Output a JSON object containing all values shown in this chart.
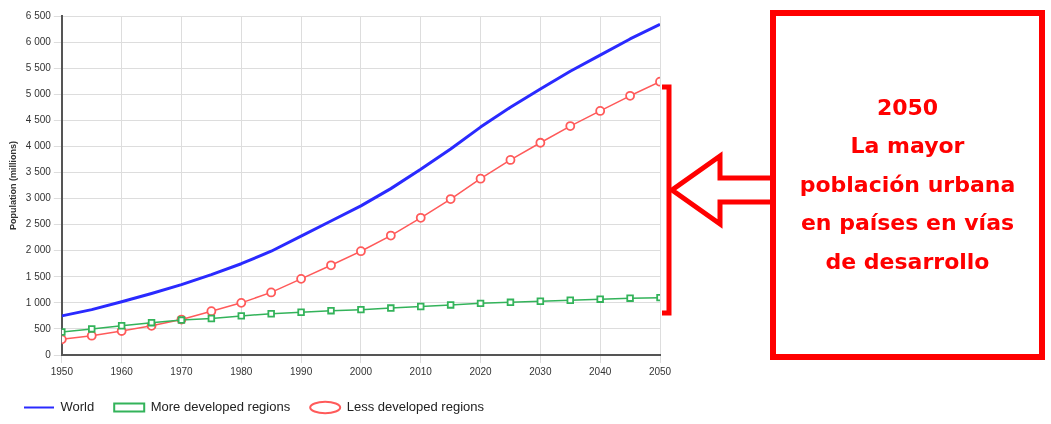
{
  "chart_data": {
    "type": "line",
    "ylabel": "Population (millions)",
    "x": [
      1950,
      1955,
      1960,
      1965,
      1970,
      1975,
      1980,
      1985,
      1990,
      1995,
      2000,
      2005,
      2010,
      2015,
      2020,
      2025,
      2030,
      2035,
      2040,
      2045,
      2050
    ],
    "xlim": [
      1950,
      2050
    ],
    "xticks": [
      1950,
      1960,
      1970,
      1980,
      1990,
      2000,
      2010,
      2020,
      2030,
      2040,
      2050
    ],
    "ylim": [
      0,
      6500
    ],
    "yticks": [
      0,
      {
        "value": 500,
        "label": "500"
      },
      {
        "value": 1000,
        "label": "1 000"
      },
      {
        "value": 1500,
        "label": "1 500"
      },
      {
        "value": 2000,
        "label": "2 000"
      },
      {
        "value": 2500,
        "label": "2 500"
      },
      {
        "value": 3000,
        "label": "3 000"
      },
      {
        "value": 3500,
        "label": "3 500"
      },
      {
        "value": 4000,
        "label": "4 000"
      },
      {
        "value": 4500,
        "label": "4 500"
      },
      {
        "value": 5000,
        "label": "5 000"
      },
      {
        "value": 5500,
        "label": "5 500"
      },
      {
        "value": 6000,
        "label": "6 000"
      },
      {
        "value": 6500,
        "label": "6 500"
      }
    ],
    "grid": true,
    "legend": "bottom",
    "series": [
      {
        "name": "World",
        "color": "#2a2aff",
        "marker": "none",
        "values": [
          750,
          870,
          1020,
          1180,
          1350,
          1540,
          1750,
          1990,
          2280,
          2570,
          2860,
          3190,
          3560,
          3950,
          4370,
          4750,
          5100,
          5440,
          5750,
          6060,
          6340
        ]
      },
      {
        "name": "More developed regions",
        "color": "#33b35a",
        "marker": "square",
        "values": [
          440,
          500,
          560,
          620,
          670,
          700,
          750,
          790,
          820,
          850,
          870,
          900,
          930,
          960,
          990,
          1010,
          1030,
          1050,
          1070,
          1090,
          1100
        ]
      },
      {
        "name": "Less developed regions",
        "color": "#ff5a5a",
        "marker": "circle",
        "values": [
          300,
          370,
          460,
          560,
          680,
          840,
          1000,
          1200,
          1460,
          1720,
          1990,
          2290,
          2630,
          2990,
          3380,
          3740,
          4070,
          4390,
          4680,
          4970,
          5240
        ]
      }
    ],
    "annotations": [
      "2050",
      "La mayor",
      "población urbana",
      "en países en vías",
      "de desarrollo"
    ]
  }
}
